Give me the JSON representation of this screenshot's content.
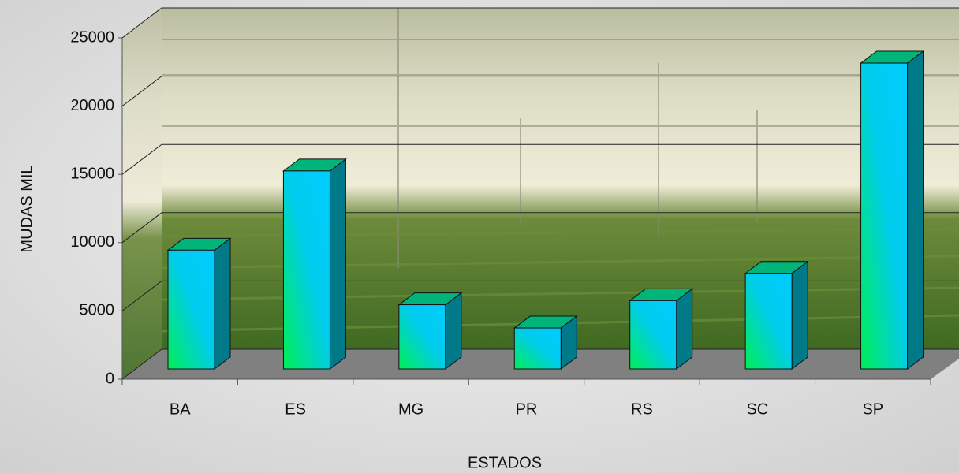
{
  "chart_data": {
    "type": "bar",
    "x_label": "ESTADOS",
    "y_label": "MUDAS MIL",
    "categories": [
      "BA",
      "ES",
      "MG",
      "PR",
      "RS",
      "SC",
      "SP"
    ],
    "values": [
      8700,
      14500,
      4700,
      3000,
      5000,
      7000,
      22400
    ],
    "color": "#00ccff",
    "ylim": [
      0,
      25000
    ],
    "yticks": [
      0,
      5000,
      10000,
      15000,
      20000,
      25000
    ],
    "grid": true
  }
}
